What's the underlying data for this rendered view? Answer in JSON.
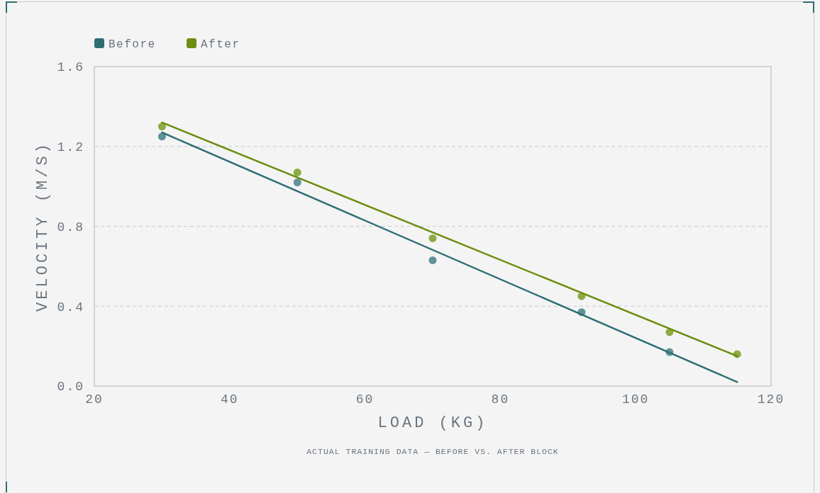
{
  "chart_data": {
    "type": "scatter",
    "xlabel": "LOAD (KG)",
    "ylabel": "VELOCITY (M/S)",
    "annotations": [
      "ACTUAL TRAINING DATA — BEFORE VS. AFTER BLOCK"
    ],
    "series": [
      {
        "marker": "circle",
        "color": "#5f9399",
        "x": [
          30,
          50,
          70,
          92,
          105
        ],
        "values": [
          1.25,
          1.02,
          0.63,
          0.37,
          0.17
        ]
      },
      {
        "marker": "circle",
        "color": "#8dab42",
        "x": [
          30,
          50,
          70,
          92,
          105,
          115
        ],
        "values": [
          1.3,
          1.07,
          0.74,
          0.45,
          0.27,
          0.16
        ]
      },
      {
        "type": "line",
        "name": "Before",
        "color": "#2e6e73",
        "x": [
          30,
          115
        ],
        "values": [
          1.27,
          0.02
        ]
      },
      {
        "type": "line",
        "name": "After",
        "color": "#6b8e0f",
        "x": [
          30,
          115
        ],
        "values": [
          1.32,
          0.15
        ]
      }
    ],
    "xlim": [
      20,
      120
    ],
    "xticks": [
      20,
      40,
      60,
      80,
      100,
      120
    ],
    "ylim": [
      0,
      1.6
    ],
    "yticks": [
      {
        "value": 0,
        "label": "0.0"
      },
      0.4,
      0.8,
      1.2,
      1.6
    ],
    "grid": "y",
    "legend": "top left",
    "line_style": "solid"
  }
}
